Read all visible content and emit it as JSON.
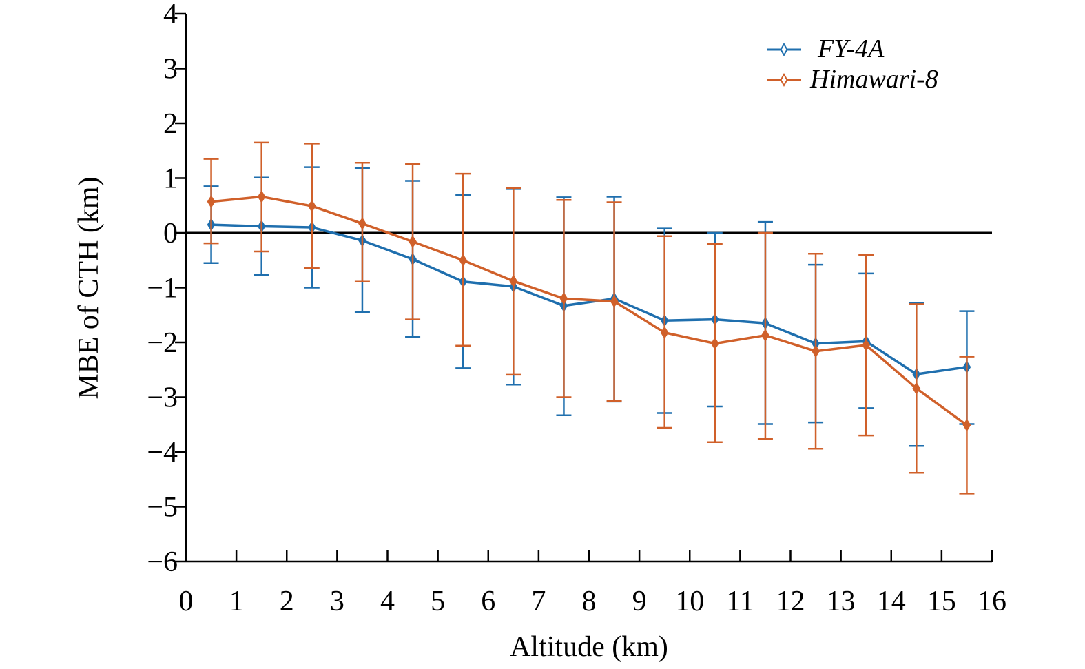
{
  "chart_data": {
    "type": "line",
    "title": "",
    "xlabel": "Altitude (km)",
    "ylabel": "MBE of CTH (km)",
    "xlim": [
      0,
      16
    ],
    "ylim": [
      -6,
      4
    ],
    "xticks": [
      "0",
      "1",
      "2",
      "3",
      "4",
      "5",
      "6",
      "7",
      "8",
      "9",
      "10",
      "11",
      "12",
      "13",
      "14",
      "15",
      "16"
    ],
    "yticks": [
      "4",
      "3",
      "2",
      "1",
      "0",
      "−1",
      "−2",
      "−3",
      "−4",
      "−5",
      "−6"
    ],
    "x": [
      0.5,
      1.5,
      2.5,
      3.5,
      4.5,
      5.5,
      6.5,
      7.5,
      8.5,
      9.5,
      10.5,
      11.5,
      12.5,
      13.5,
      14.5,
      15.5
    ],
    "legend_position": "top-right",
    "series": [
      {
        "name": "FY-4A",
        "color": "#1f6fae",
        "values": [
          0.15,
          0.12,
          0.1,
          -0.14,
          -0.48,
          -0.89,
          -0.98,
          -1.33,
          -1.2,
          -1.6,
          -1.58,
          -1.65,
          -2.02,
          -1.98,
          -2.58,
          -2.45
        ],
        "err_high": [
          0.85,
          1.01,
          1.2,
          1.18,
          0.95,
          0.69,
          0.8,
          0.65,
          0.66,
          0.08,
          0.0,
          0.2,
          -0.58,
          -0.74,
          -1.28,
          -1.43
        ],
        "err_low": [
          -0.55,
          -0.77,
          -1.0,
          -1.45,
          -1.9,
          -2.47,
          -2.77,
          -3.33,
          -3.08,
          -3.29,
          -3.17,
          -3.49,
          -3.46,
          -3.2,
          -3.89,
          -3.49
        ]
      },
      {
        "name": "Himawari-8",
        "color": "#d0602a",
        "values": [
          0.57,
          0.66,
          0.49,
          0.17,
          -0.16,
          -0.5,
          -0.88,
          -1.2,
          -1.25,
          -1.82,
          -2.02,
          -1.87,
          -2.16,
          -2.05,
          -2.84,
          -3.51
        ],
        "err_high": [
          1.35,
          1.65,
          1.63,
          1.28,
          1.26,
          1.08,
          0.82,
          0.6,
          0.56,
          -0.06,
          -0.2,
          0.0,
          -0.38,
          -0.4,
          -1.3,
          -2.26
        ],
        "err_low": [
          -0.19,
          -0.34,
          -0.64,
          -0.89,
          -1.58,
          -2.06,
          -2.59,
          -3.0,
          -3.07,
          -3.56,
          -3.82,
          -3.76,
          -3.94,
          -3.7,
          -4.38,
          -4.76
        ]
      }
    ]
  }
}
